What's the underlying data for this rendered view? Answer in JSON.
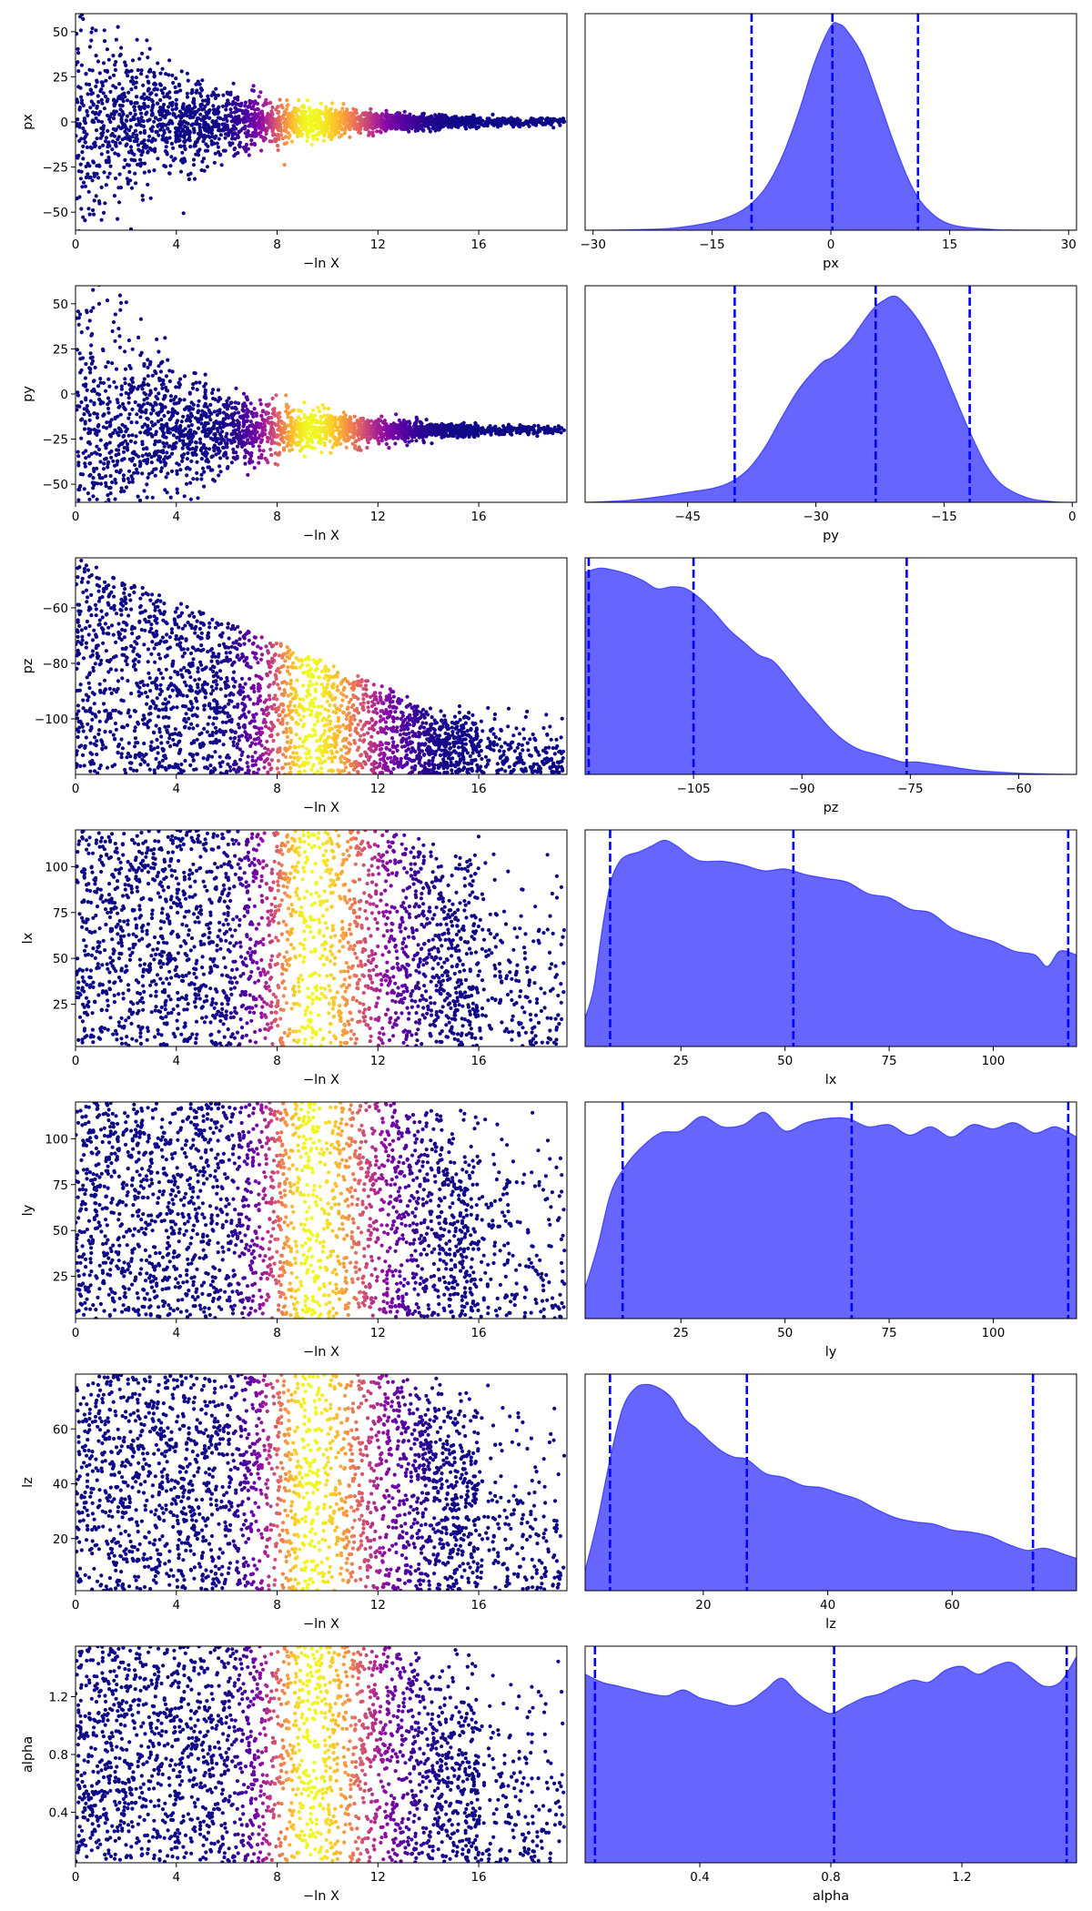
{
  "figure": {
    "colors": {
      "posterior_fill": "#6666ff",
      "posterior_line": "#0000ff",
      "quantile_line": "#0000ff"
    },
    "colormap": "plasma",
    "trace_xlabel": "−ln X",
    "trace_xticks": [
      0,
      4,
      8,
      12,
      16
    ],
    "trace_xlim": [
      0,
      19.5
    ]
  },
  "chart_data": [
    {
      "type": "scatter",
      "param": "px",
      "ylabel": "px",
      "xlabel": "−ln X",
      "ylim": [
        -60,
        60
      ],
      "yticks": [
        -50,
        -25,
        0,
        25,
        50
      ],
      "shape": "funnel",
      "center": 0,
      "spread_start": 60,
      "spread_end": 1,
      "color_peak_lnX": 9.3
    },
    {
      "type": "area",
      "param": "px",
      "xlabel": "px",
      "xlim": [
        -31,
        31
      ],
      "xticks": [
        -30,
        -15,
        0,
        15,
        30
      ],
      "quantiles": [
        -10,
        0.2,
        11
      ],
      "x": [
        -31,
        -25,
        -20,
        -15,
        -12,
        -10,
        -8,
        -6,
        -4,
        -2,
        0,
        1,
        2,
        4,
        6,
        8,
        10,
        12,
        15,
        20,
        25,
        31
      ],
      "y": [
        0,
        0.003,
        0.01,
        0.04,
        0.08,
        0.13,
        0.22,
        0.37,
        0.58,
        0.82,
        0.99,
        1.0,
        0.97,
        0.85,
        0.64,
        0.42,
        0.23,
        0.11,
        0.03,
        0.005,
        0.001,
        0
      ]
    },
    {
      "type": "scatter",
      "param": "py",
      "ylabel": "py",
      "xlabel": "−ln X",
      "ylim": [
        -60,
        60
      ],
      "yticks": [
        -50,
        -25,
        0,
        25,
        50
      ],
      "shape": "funnel",
      "center": -20,
      "spread_start": 80,
      "spread_end": 1,
      "color_peak_lnX": 9.3
    },
    {
      "type": "area",
      "param": "py",
      "xlabel": "py",
      "xlim": [
        -57,
        0.5
      ],
      "xticks": [
        -45,
        -30,
        -15,
        0
      ],
      "quantiles": [
        -39.5,
        -23,
        -12
      ],
      "x": [
        -57,
        -52,
        -48,
        -45,
        -42,
        -40,
        -38,
        -36,
        -34,
        -32,
        -30,
        -29,
        -28,
        -26,
        -25,
        -24,
        -23,
        -22,
        -21,
        -20,
        -18,
        -16,
        -14,
        -12,
        -10,
        -8,
        -5,
        -2,
        0.5
      ],
      "y": [
        0,
        0.01,
        0.03,
        0.05,
        0.07,
        0.1,
        0.16,
        0.27,
        0.42,
        0.56,
        0.66,
        0.7,
        0.72,
        0.8,
        0.86,
        0.92,
        0.97,
        1.0,
        1.02,
        1.0,
        0.9,
        0.75,
        0.55,
        0.35,
        0.18,
        0.08,
        0.02,
        0.003,
        0
      ]
    },
    {
      "type": "scatter",
      "param": "pz",
      "ylabel": "pz",
      "xlabel": "−ln X",
      "ylim": [
        -120,
        -42
      ],
      "yticks": [
        -100,
        -80,
        -60
      ],
      "shape": "band",
      "low": -120,
      "high_start": -42,
      "high_end": -95,
      "color_peak_lnX": 9.3
    },
    {
      "type": "area",
      "param": "pz",
      "xlabel": "pz",
      "xlim": [
        -120,
        -52
      ],
      "xticks": [
        -105,
        -90,
        -75,
        -60
      ],
      "quantiles": [
        -119.5,
        -105,
        -75.5
      ],
      "x": [
        -120,
        -118,
        -116,
        -114,
        -112,
        -110,
        -108,
        -106,
        -104,
        -102,
        -100,
        -98,
        -96,
        -94,
        -92,
        -90,
        -88,
        -86,
        -84,
        -82,
        -80,
        -78,
        -76,
        -74,
        -70,
        -66,
        -62,
        -58,
        -52
      ],
      "y": [
        0.98,
        1.0,
        0.99,
        0.97,
        0.94,
        0.9,
        0.91,
        0.9,
        0.85,
        0.78,
        0.7,
        0.64,
        0.58,
        0.55,
        0.47,
        0.38,
        0.3,
        0.22,
        0.16,
        0.12,
        0.1,
        0.08,
        0.06,
        0.06,
        0.04,
        0.02,
        0.01,
        0.004,
        0
      ]
    },
    {
      "type": "scatter",
      "param": "lx",
      "ylabel": "lx",
      "xlabel": "−ln X",
      "ylim": [
        2,
        120
      ],
      "yticks": [
        25,
        50,
        75,
        100
      ],
      "shape": "band",
      "low": 2,
      "high_start": 120,
      "high_end": 120,
      "color_peak_lnX": 9.3
    },
    {
      "type": "area",
      "param": "lx",
      "xlabel": "lx",
      "xlim": [
        2,
        120
      ],
      "xticks": [
        25,
        50,
        75,
        100
      ],
      "quantiles": [
        8,
        52,
        118
      ],
      "x": [
        2,
        4,
        6,
        8,
        10,
        12,
        15,
        18,
        21,
        24,
        27,
        30,
        35,
        40,
        45,
        50,
        55,
        60,
        65,
        70,
        75,
        80,
        85,
        90,
        95,
        100,
        105,
        110,
        113,
        116,
        120
      ],
      "y": [
        0.15,
        0.3,
        0.6,
        0.85,
        0.96,
        1.0,
        1.02,
        1.05,
        1.08,
        1.05,
        1.0,
        0.97,
        0.97,
        0.95,
        0.92,
        0.93,
        0.9,
        0.88,
        0.86,
        0.8,
        0.78,
        0.72,
        0.7,
        0.62,
        0.58,
        0.55,
        0.5,
        0.48,
        0.42,
        0.5,
        0.48
      ]
    },
    {
      "type": "scatter",
      "param": "ly",
      "ylabel": "ly",
      "xlabel": "−ln X",
      "ylim": [
        2,
        120
      ],
      "yticks": [
        25,
        50,
        75,
        100
      ],
      "shape": "band",
      "low": 2,
      "high_start": 120,
      "high_end": 120,
      "color_peak_lnX": 9.3
    },
    {
      "type": "area",
      "param": "ly",
      "xlabel": "ly",
      "xlim": [
        2,
        120
      ],
      "xticks": [
        25,
        50,
        75,
        100
      ],
      "quantiles": [
        11,
        66,
        118
      ],
      "x": [
        2,
        5,
        8,
        11,
        15,
        20,
        25,
        30,
        35,
        40,
        45,
        50,
        55,
        60,
        65,
        70,
        75,
        80,
        85,
        90,
        95,
        100,
        105,
        110,
        115,
        120
      ],
      "y": [
        0.15,
        0.35,
        0.6,
        0.72,
        0.82,
        0.9,
        0.91,
        0.98,
        0.93,
        0.94,
        1.0,
        0.91,
        0.95,
        0.97,
        0.97,
        0.93,
        0.94,
        0.89,
        0.93,
        0.88,
        0.94,
        0.92,
        0.95,
        0.9,
        0.93,
        0.88
      ]
    },
    {
      "type": "scatter",
      "param": "lz",
      "ylabel": "lz",
      "xlabel": "−ln X",
      "ylim": [
        1,
        80
      ],
      "yticks": [
        20,
        40,
        60
      ],
      "shape": "band",
      "low": 1,
      "high_start": 80,
      "high_end": 80,
      "color_peak_lnX": 9.3
    },
    {
      "type": "area",
      "param": "lz",
      "xlabel": "lz",
      "xlim": [
        1,
        80
      ],
      "xticks": [
        20,
        40,
        60
      ],
      "quantiles": [
        5,
        27,
        73
      ],
      "x": [
        1,
        3,
        5,
        7,
        9,
        11,
        13,
        15,
        17,
        19,
        21,
        23,
        25,
        27,
        30,
        33,
        36,
        39,
        42,
        45,
        48,
        51,
        54,
        57,
        60,
        63,
        66,
        69,
        72,
        75,
        78,
        80
      ],
      "y": [
        0.1,
        0.35,
        0.65,
        0.9,
        1.0,
        1.02,
        1.0,
        0.95,
        0.85,
        0.8,
        0.74,
        0.69,
        0.66,
        0.65,
        0.58,
        0.56,
        0.52,
        0.51,
        0.48,
        0.45,
        0.4,
        0.36,
        0.34,
        0.33,
        0.3,
        0.29,
        0.27,
        0.23,
        0.2,
        0.21,
        0.18,
        0.16
      ]
    },
    {
      "type": "scatter",
      "param": "alpha",
      "ylabel": "alpha",
      "xlabel": "−ln X",
      "ylim": [
        0.05,
        1.55
      ],
      "yticks": [
        0.4,
        0.8,
        1.2
      ],
      "shape": "band",
      "low": 0.05,
      "high_start": 1.55,
      "high_end": 1.55,
      "color_peak_lnX": 9.3
    },
    {
      "type": "area",
      "param": "alpha",
      "xlabel": "alpha",
      "xlim": [
        0.05,
        1.55
      ],
      "xticks": [
        0.4,
        0.8,
        1.2
      ],
      "quantiles": [
        0.08,
        0.81,
        1.52
      ],
      "x": [
        0.05,
        0.1,
        0.15,
        0.2,
        0.25,
        0.3,
        0.35,
        0.4,
        0.45,
        0.5,
        0.55,
        0.6,
        0.65,
        0.7,
        0.75,
        0.8,
        0.85,
        0.9,
        0.95,
        1.0,
        1.05,
        1.1,
        1.15,
        1.2,
        1.25,
        1.3,
        1.35,
        1.4,
        1.45,
        1.5,
        1.55
      ],
      "y": [
        0.96,
        0.92,
        0.9,
        0.88,
        0.86,
        0.85,
        0.88,
        0.84,
        0.82,
        0.8,
        0.82,
        0.88,
        0.94,
        0.86,
        0.8,
        0.76,
        0.8,
        0.84,
        0.86,
        0.9,
        0.93,
        0.92,
        0.98,
        1.0,
        0.96,
        1.0,
        1.02,
        0.96,
        0.9,
        0.92,
        1.05
      ]
    }
  ]
}
